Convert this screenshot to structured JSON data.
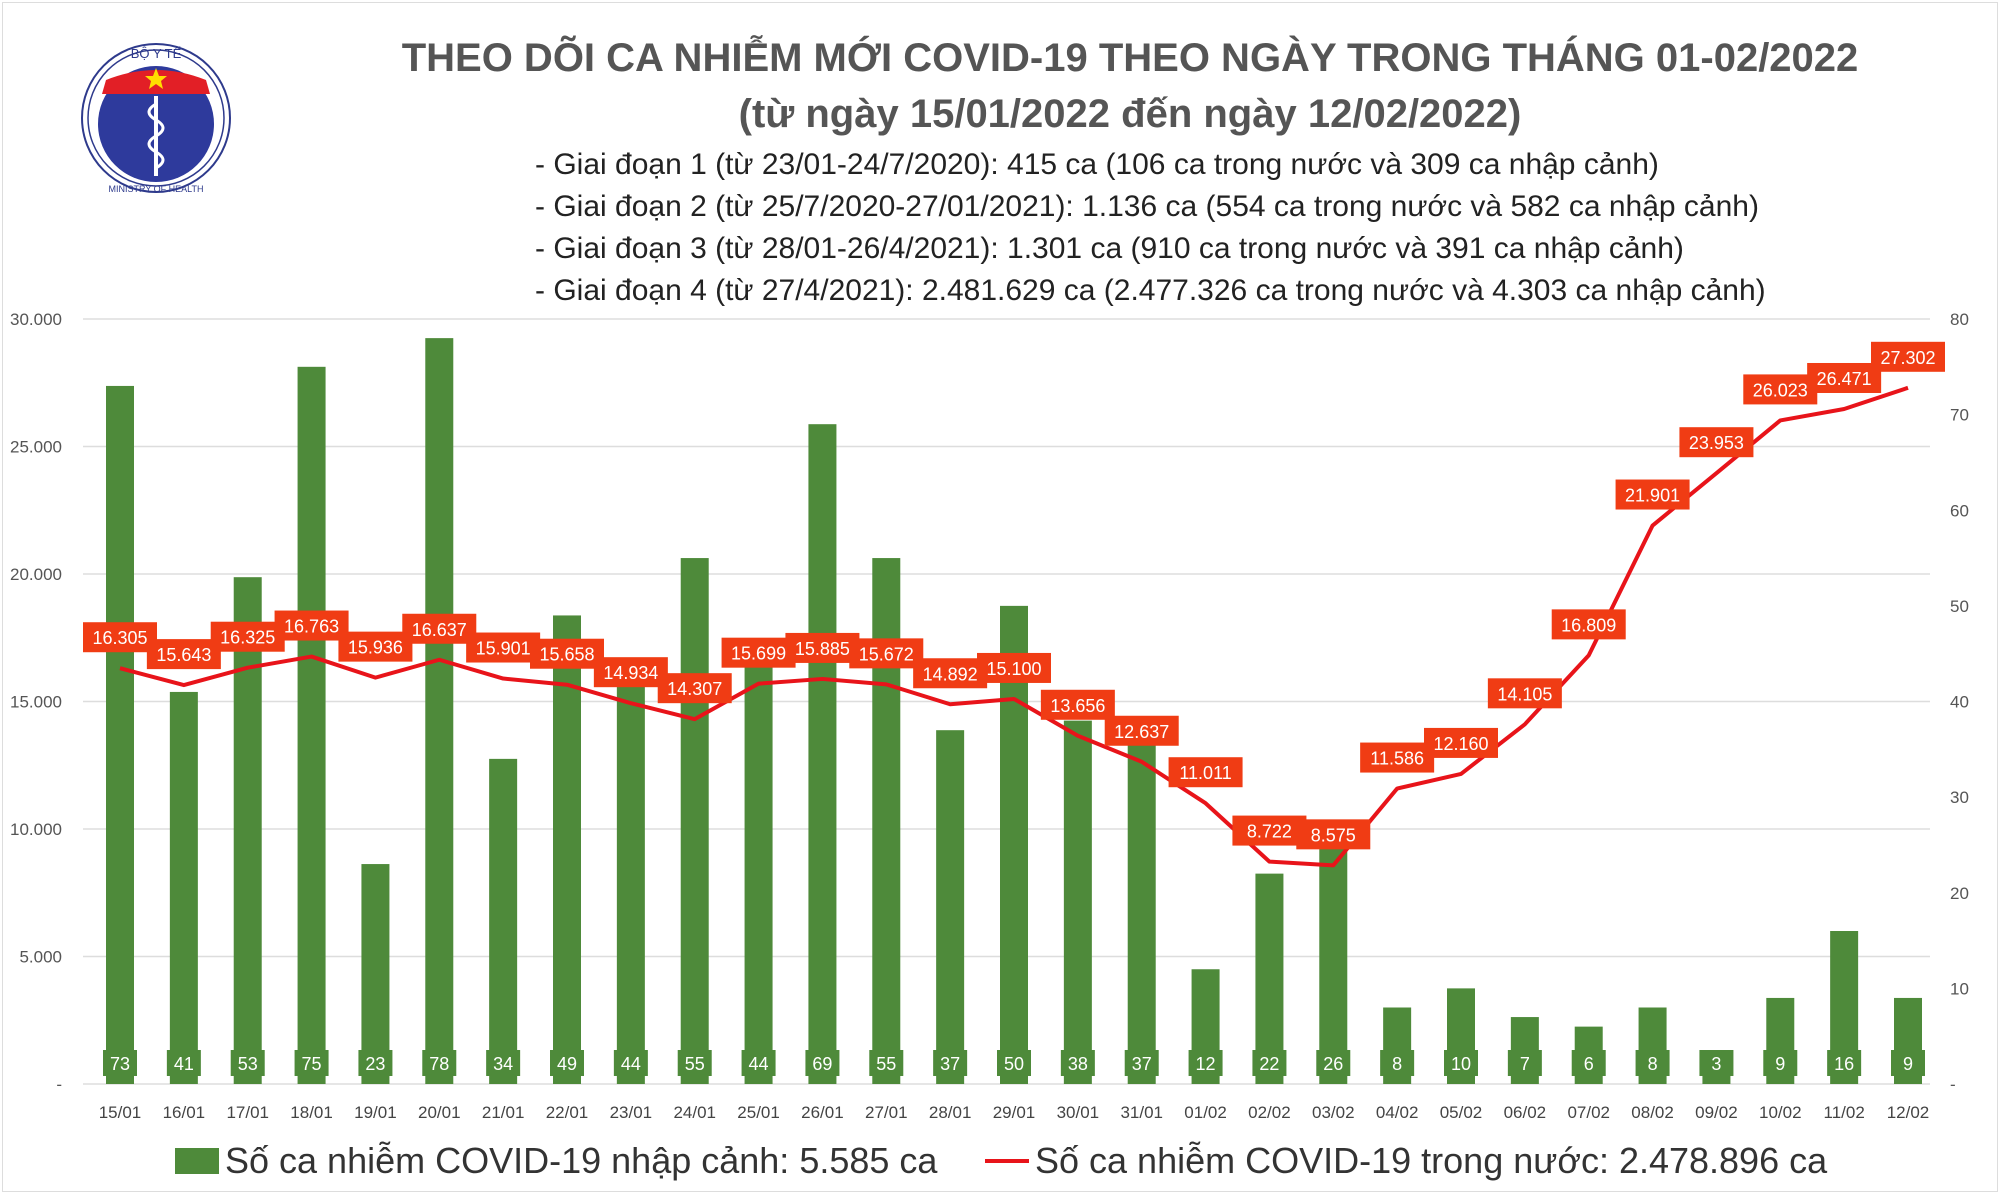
{
  "logo": {
    "text_top": "BỘ Y TẾ",
    "text_bottom": "MINISTRY OF HEALTH"
  },
  "header": {
    "title": "THEO DÕI CA NHIỄM MỚI COVID-19 THEO NGÀY TRONG THÁNG 01-02/2022",
    "subtitle": "(từ ngày 15/01/2022 đến ngày 12/02/2022)",
    "stages": [
      "- Giai đoạn 1 (từ 23/01-24/7/2020): 415 ca (106 ca trong nước và 309 ca nhập cảnh)",
      "- Giai đoạn 2 (từ 25/7/2020-27/01/2021): 1.136 ca (554 ca trong nước và 582 ca nhập cảnh)",
      "- Giai đoạn 3 (từ 28/01-26/4/2021): 1.301 ca (910 ca trong nước và 391 ca nhập cảnh)",
      "- Giai đoạn 4 (từ 27/4/2021): 2.481.629 ca (2.477.326 ca trong nước và 4.303 ca nhập cảnh)"
    ]
  },
  "chart_data": {
    "type": "bar+line",
    "categories": [
      "15/01",
      "16/01",
      "17/01",
      "18/01",
      "19/01",
      "20/01",
      "21/01",
      "22/01",
      "23/01",
      "24/01",
      "25/01",
      "26/01",
      "27/01",
      "28/01",
      "29/01",
      "30/01",
      "31/01",
      "01/02",
      "02/02",
      "03/02",
      "04/02",
      "05/02",
      "06/02",
      "07/02",
      "08/02",
      "09/02",
      "10/02",
      "11/02",
      "12/02"
    ],
    "series": [
      {
        "name": "Số ca nhiễm COVID-19 nhập cảnh: 5.585 ca",
        "type": "bar",
        "axis": "right",
        "color": "#4e8a3a",
        "values": [
          73,
          41,
          53,
          75,
          23,
          78,
          34,
          49,
          44,
          55,
          44,
          69,
          55,
          37,
          50,
          38,
          37,
          12,
          22,
          26,
          8,
          10,
          7,
          6,
          8,
          3,
          9,
          16,
          9
        ]
      },
      {
        "name": "Số ca nhiễm COVID-19 trong nước: 2.478.896 ca",
        "type": "line",
        "axis": "left",
        "color": "#e8141a",
        "values": [
          16305,
          15643,
          16325,
          16763,
          15936,
          16637,
          15901,
          15658,
          14934,
          14307,
          15699,
          15885,
          15672,
          14892,
          15100,
          13656,
          12637,
          11011,
          8722,
          8575,
          11586,
          12160,
          14105,
          16809,
          21901,
          23953,
          26023,
          26471,
          27302
        ]
      }
    ],
    "y_left": {
      "range": [
        0,
        30000
      ],
      "ticks": [
        "-",
        "5.000",
        "10.000",
        "15.000",
        "20.000",
        "25.000",
        "30.000"
      ]
    },
    "y_right": {
      "range": [
        0,
        80
      ],
      "ticks": [
        "-",
        "10",
        "20",
        "30",
        "40",
        "50",
        "60",
        "70",
        "80"
      ]
    },
    "grid": true,
    "legend": "bottom",
    "label_box_color": "#f03c14"
  }
}
